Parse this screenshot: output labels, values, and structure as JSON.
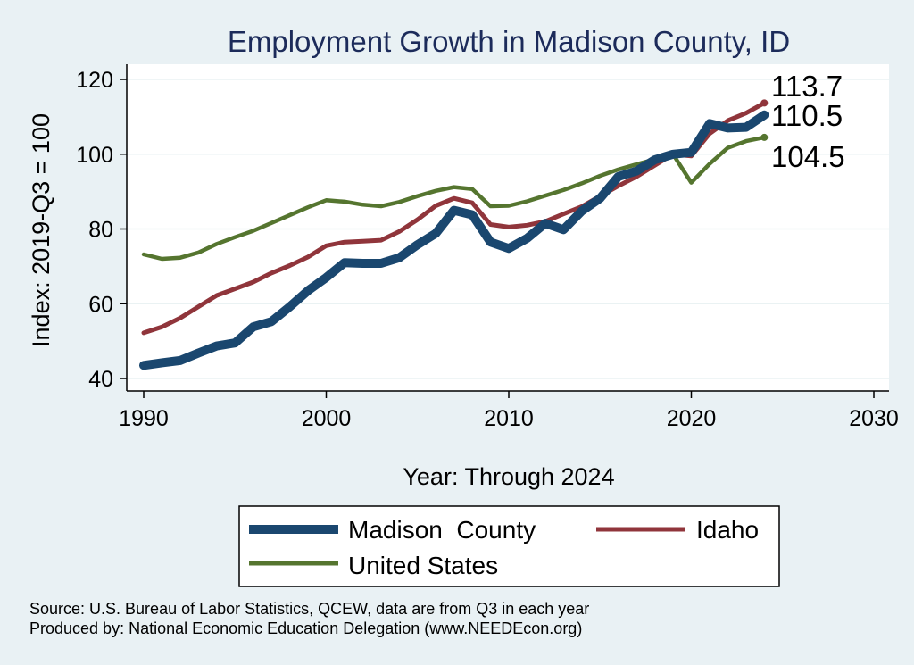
{
  "chart_data": {
    "type": "line",
    "title": "Employment Growth in Madison County, ID",
    "xlabel": "Year: Through 2024",
    "ylabel": "Index: 2019-Q3 = 100",
    "xlim": [
      1990,
      2030
    ],
    "ylim": [
      40,
      120
    ],
    "x_ticks": [
      1990,
      2000,
      2010,
      2020,
      2030
    ],
    "y_ticks": [
      40,
      60,
      80,
      100,
      120
    ],
    "grid": true,
    "legend_position": "bottom",
    "x": [
      1990,
      1991,
      1992,
      1993,
      1994,
      1995,
      1996,
      1997,
      1998,
      1999,
      2000,
      2001,
      2002,
      2003,
      2004,
      2005,
      2006,
      2007,
      2008,
      2009,
      2010,
      2011,
      2012,
      2013,
      2014,
      2015,
      2016,
      2017,
      2018,
      2019,
      2020,
      2021,
      2022,
      2023,
      2024
    ],
    "series": [
      {
        "name": "Madison  County",
        "color": "#1a476f",
        "values": [
          43.5,
          44.2,
          44.8,
          46.8,
          48.7,
          49.5,
          53.8,
          55.2,
          59.2,
          63.5,
          67.0,
          71.0,
          70.8,
          70.8,
          72.3,
          75.8,
          78.8,
          85.0,
          83.8,
          76.5,
          74.8,
          77.5,
          81.5,
          79.8,
          84.8,
          88.2,
          94.0,
          95.5,
          98.5,
          100.0,
          100.5,
          108.2,
          107.0,
          107.2,
          110.5
        ]
      },
      {
        "name": "Idaho",
        "color": "#90353b",
        "values": [
          52.2,
          53.8,
          56.2,
          59.2,
          62.2,
          64.0,
          65.8,
          68.2,
          70.2,
          72.5,
          75.5,
          76.5,
          76.7,
          77.0,
          79.3,
          82.5,
          86.2,
          88.2,
          87.0,
          81.2,
          80.5,
          81.0,
          82.0,
          84.0,
          86.0,
          88.8,
          91.5,
          94.0,
          97.0,
          100.0,
          99.5,
          105.5,
          109.0,
          111.0,
          113.7
        ]
      },
      {
        "name": "United States",
        "color": "#55752f",
        "values": [
          73.2,
          72.0,
          72.3,
          73.7,
          76.0,
          77.8,
          79.5,
          81.6,
          83.7,
          85.8,
          87.7,
          87.3,
          86.5,
          86.1,
          87.2,
          88.8,
          90.2,
          91.2,
          90.7,
          86.1,
          86.2,
          87.4,
          88.9,
          90.4,
          92.2,
          94.2,
          95.9,
          97.3,
          98.6,
          100.0,
          92.4,
          97.4,
          101.7,
          103.5,
          104.5
        ]
      }
    ],
    "end_labels": [
      {
        "text": "113.7",
        "value": 113.7,
        "color": "#90353b"
      },
      {
        "text": "110.5",
        "value": 110.5,
        "color": "#1a476f"
      },
      {
        "text": "104.5",
        "value": 104.5,
        "color": "#55752f"
      }
    ],
    "source_line1": "Source: U.S. Bureau of Labor Statistics, QCEW, data are from Q3 in each year",
    "source_line2": "Produced by: National Economic Education Delegation (www.NEEDEcon.org)"
  }
}
